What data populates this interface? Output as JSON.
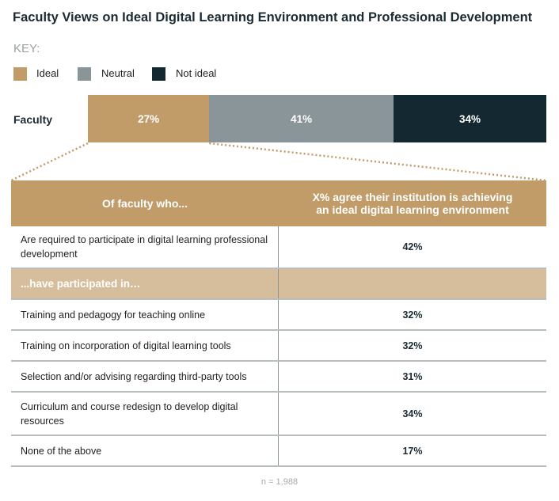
{
  "title": "Faculty Views on Ideal Digital Learning Environment and Professional Development",
  "key_label": "KEY:",
  "chart_data": {
    "type": "bar",
    "orientation": "horizontal-stacked",
    "categories": [
      "Faculty"
    ],
    "series": [
      {
        "name": "Ideal",
        "values": [
          27
        ],
        "label": "27%",
        "color": "#c19c69"
      },
      {
        "name": "Neutral",
        "values": [
          41
        ],
        "label": "41%",
        "color": "#8a9599"
      },
      {
        "name": "Not ideal",
        "values": [
          34
        ],
        "label": "34%",
        "color": "#132830"
      }
    ],
    "legend": "top-left"
  },
  "table": {
    "header": [
      "Of faculty who...",
      "X% agree their institution is achieving an ideal digital learning environment"
    ],
    "rows": [
      {
        "label": "Are required to participate in digital learning professional development",
        "value": "42%"
      },
      {
        "label": "...have participated in…",
        "value": "",
        "subheader": true
      },
      {
        "label": "Training and pedagogy for teaching online",
        "value": "32%"
      },
      {
        "label": "Training on incorporation of digital learning tools",
        "value": "32%"
      },
      {
        "label": "Selection and/or advising regarding third-party tools",
        "value": "31%"
      },
      {
        "label": "Curriculum and course redesign to develop digital resources",
        "value": "34%"
      },
      {
        "label": "None of the above",
        "value": "17%"
      }
    ]
  },
  "footnote": "n =  1,988",
  "colors": {
    "accent": "#c19c69",
    "subheader": "#d6be9c",
    "title": "#1c2b33"
  }
}
